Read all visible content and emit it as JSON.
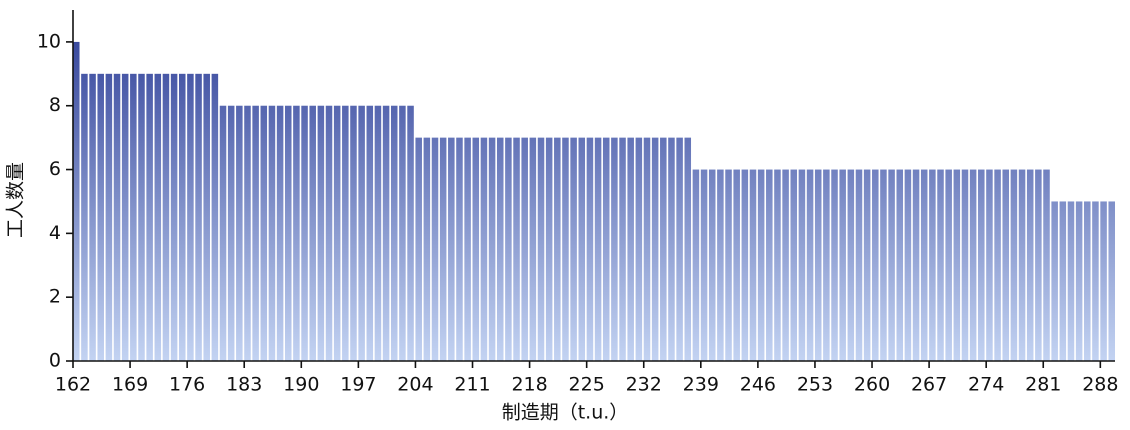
{
  "chart_data": {
    "type": "bar",
    "x_label": "制造期（t.u.）",
    "y_label": "工人数量",
    "x": [
      162,
      163,
      164,
      165,
      166,
      167,
      168,
      169,
      170,
      171,
      172,
      173,
      174,
      175,
      176,
      177,
      178,
      179,
      180,
      181,
      182,
      183,
      184,
      185,
      186,
      187,
      188,
      189,
      190,
      191,
      192,
      193,
      194,
      195,
      196,
      197,
      198,
      199,
      200,
      201,
      202,
      203,
      204,
      205,
      206,
      207,
      208,
      209,
      210,
      211,
      212,
      213,
      214,
      215,
      216,
      217,
      218,
      219,
      220,
      221,
      222,
      223,
      224,
      225,
      226,
      227,
      228,
      229,
      230,
      231,
      232,
      233,
      234,
      235,
      236,
      237,
      238,
      239,
      240,
      241,
      242,
      243,
      244,
      245,
      246,
      247,
      248,
      249,
      250,
      251,
      252,
      253,
      254,
      255,
      256,
      257,
      258,
      259,
      260,
      261,
      262,
      263,
      264,
      265,
      266,
      267,
      268,
      269,
      270,
      271,
      272,
      273,
      274,
      275,
      276,
      277,
      278,
      279,
      280,
      281,
      282,
      283,
      284,
      285,
      286,
      287,
      288,
      289
    ],
    "values": [
      10,
      9,
      9,
      9,
      9,
      9,
      9,
      9,
      9,
      9,
      9,
      9,
      9,
      9,
      9,
      9,
      9,
      9,
      8,
      8,
      8,
      8,
      8,
      8,
      8,
      8,
      8,
      8,
      8,
      8,
      8,
      8,
      8,
      8,
      8,
      8,
      8,
      8,
      8,
      8,
      8,
      8,
      7,
      7,
      7,
      7,
      7,
      7,
      7,
      7,
      7,
      7,
      7,
      7,
      7,
      7,
      7,
      7,
      7,
      7,
      7,
      7,
      7,
      7,
      7,
      7,
      7,
      7,
      7,
      7,
      7,
      7,
      7,
      7,
      7,
      7,
      6,
      6,
      6,
      6,
      6,
      6,
      6,
      6,
      6,
      6,
      6,
      6,
      6,
      6,
      6,
      6,
      6,
      6,
      6,
      6,
      6,
      6,
      6,
      6,
      6,
      6,
      6,
      6,
      6,
      6,
      6,
      6,
      6,
      6,
      6,
      6,
      6,
      6,
      6,
      6,
      6,
      6,
      6,
      6,
      5,
      5,
      5,
      5,
      5,
      5,
      5,
      5
    ],
    "gradient": [
      "#3a4a9e",
      "#c3d3f2"
    ],
    "xlim": [
      162,
      289.8
    ],
    "ylim": [
      0,
      11
    ],
    "xticks": [
      162,
      169,
      176,
      183,
      190,
      197,
      204,
      211,
      218,
      225,
      232,
      239,
      246,
      253,
      260,
      267,
      274,
      281,
      288
    ],
    "yticks": [
      0,
      2,
      4,
      6,
      8,
      10
    ]
  }
}
